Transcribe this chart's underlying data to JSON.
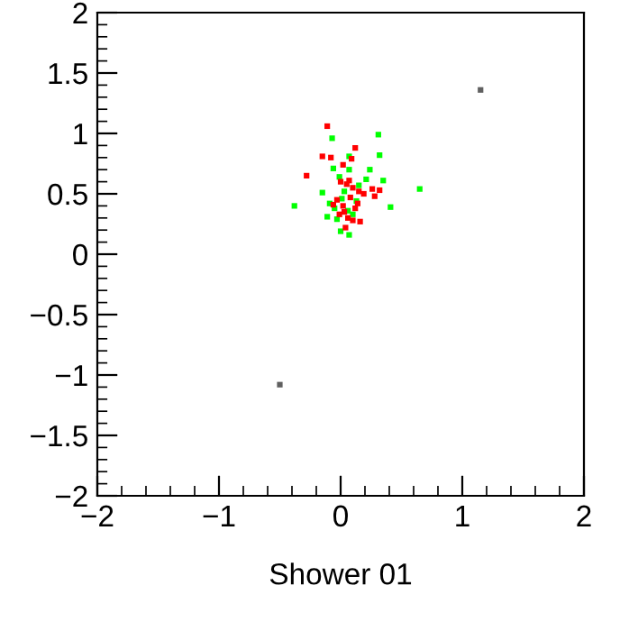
{
  "chart_data": {
    "type": "scatter",
    "xlabel": "Shower 01",
    "xlim": [
      -2,
      2
    ],
    "ylim": [
      -2,
      2
    ],
    "xticks": [
      -2,
      -1,
      0,
      1,
      2
    ],
    "yticks": [
      -2,
      -1.5,
      -1,
      -0.5,
      0,
      0.5,
      1,
      1.5,
      2
    ],
    "grid": false,
    "marker": "square",
    "series": [
      {
        "color": "#00ff00",
        "x": [
          -0.07,
          0.31,
          0.32,
          0.07,
          -0.06,
          -0.01,
          0.07,
          0.24,
          0.21,
          0.35,
          0.65,
          -0.15,
          0.41,
          -0.38,
          -0.09,
          0.0,
          0.07,
          0.06,
          0.01,
          0.13,
          -0.11,
          -0.03,
          0.03,
          0.1,
          -0.05,
          0.15
        ],
        "values": [
          0.96,
          0.99,
          0.82,
          0.81,
          0.71,
          0.64,
          0.7,
          0.7,
          0.62,
          0.61,
          0.54,
          0.51,
          0.39,
          0.4,
          0.42,
          0.19,
          0.16,
          0.36,
          0.46,
          0.44,
          0.31,
          0.29,
          0.52,
          0.33,
          0.38,
          0.57
        ]
      },
      {
        "color": "#ff0000",
        "x": [
          -0.11,
          -0.15,
          -0.08,
          0.09,
          -0.28,
          0.02,
          0.12,
          0.26,
          0.32,
          0.28,
          0.04,
          0.16,
          -0.06,
          0.0,
          0.05,
          0.1,
          0.15,
          0.19,
          -0.03,
          0.08,
          0.12,
          0.03,
          0.06,
          -0.01,
          0.1,
          0.14,
          0.02,
          0.07
        ],
        "values": [
          1.06,
          0.81,
          0.8,
          0.79,
          0.65,
          0.74,
          0.88,
          0.54,
          0.53,
          0.48,
          0.22,
          0.27,
          0.41,
          0.6,
          0.58,
          0.55,
          0.52,
          0.5,
          0.45,
          0.47,
          0.38,
          0.35,
          0.3,
          0.33,
          0.28,
          0.42,
          0.4,
          0.61
        ]
      },
      {
        "color": "#606060",
        "x": [
          1.15,
          -0.5
        ],
        "values": [
          1.36,
          -1.08
        ]
      }
    ]
  }
}
